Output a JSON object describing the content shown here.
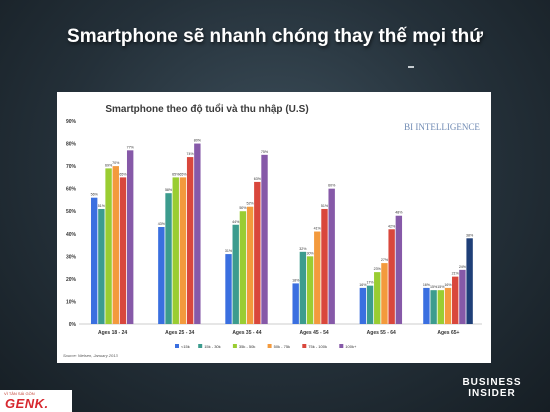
{
  "slide": {
    "title": "Smartphone sẽ nhanh chóng thay thế mọi thứ",
    "brand_line1": "BUSINESS",
    "brand_line2": "INSIDER",
    "logo_tagline": "VÌ TÂN SÁI GÒN",
    "logo_text": "GENK."
  },
  "chart_data": {
    "type": "bar",
    "title": "Smartphone theo độ tuổi và thu nhập (U.S)",
    "watermark": "BI INTELLIGENCE",
    "source": "Source: Nielsen, January 2013",
    "categories": [
      "Ages 18 - 24",
      "Ages 25 - 34",
      "Ages 35 - 44",
      "Ages 45 - 54",
      "Ages 55 - 64",
      "Ages 65+"
    ],
    "series": [
      {
        "name": "<15k",
        "color": "#3a6fe0",
        "values": [
          56,
          43,
          31,
          18,
          16,
          16
        ]
      },
      {
        "name": "15k - 30k",
        "color": "#3c9c8e",
        "values": [
          51,
          58,
          44,
          32,
          17,
          15
        ]
      },
      {
        "name": "35k - 50k",
        "color": "#9acd32",
        "values": [
          69,
          65,
          50,
          30,
          23,
          15
        ]
      },
      {
        "name": "50k - 75k",
        "color": "#f39a3d",
        "values": [
          70,
          65,
          52,
          41,
          27,
          16
        ]
      },
      {
        "name": "75k - 100k",
        "color": "#d9473c",
        "values": [
          65,
          74,
          63,
          51,
          42,
          21
        ]
      },
      {
        "name": "100k+",
        "color": "#8659a8",
        "values": [
          77,
          80,
          75,
          60,
          48,
          24
        ]
      },
      {
        "name": "",
        "color": "#1f3f78",
        "values": [
          null,
          null,
          null,
          null,
          null,
          38
        ]
      }
    ],
    "data_labels": [
      [
        "56%",
        "51%",
        "69%",
        "70%",
        "65%",
        "77%",
        null
      ],
      [
        "43%",
        "58%",
        "65%",
        "65%",
        "74%",
        "80%",
        null
      ],
      [
        "31%",
        "44%",
        "50%",
        "52%",
        "63%",
        "75%",
        null
      ],
      [
        "18%",
        "32%",
        "30%",
        "41%",
        "51%",
        "60%",
        null
      ],
      [
        "16%",
        "17%",
        "23%",
        "27%",
        "42%",
        "48%",
        null
      ],
      [
        "16%",
        "15%",
        "15%",
        "16%",
        "21%",
        "24%",
        "38%"
      ]
    ],
    "ylim": [
      0,
      90
    ],
    "yticks": [
      "0%",
      "10%",
      "20%",
      "30%",
      "40%",
      "50%",
      "60%",
      "70%",
      "80%",
      "90%"
    ],
    "legend": [
      "<15k",
      "15k - 30k",
      "35k - 50k",
      "50k - 75k",
      "75k - 100k",
      "100k+"
    ],
    "grid": false,
    "legend_position": "bottom"
  }
}
